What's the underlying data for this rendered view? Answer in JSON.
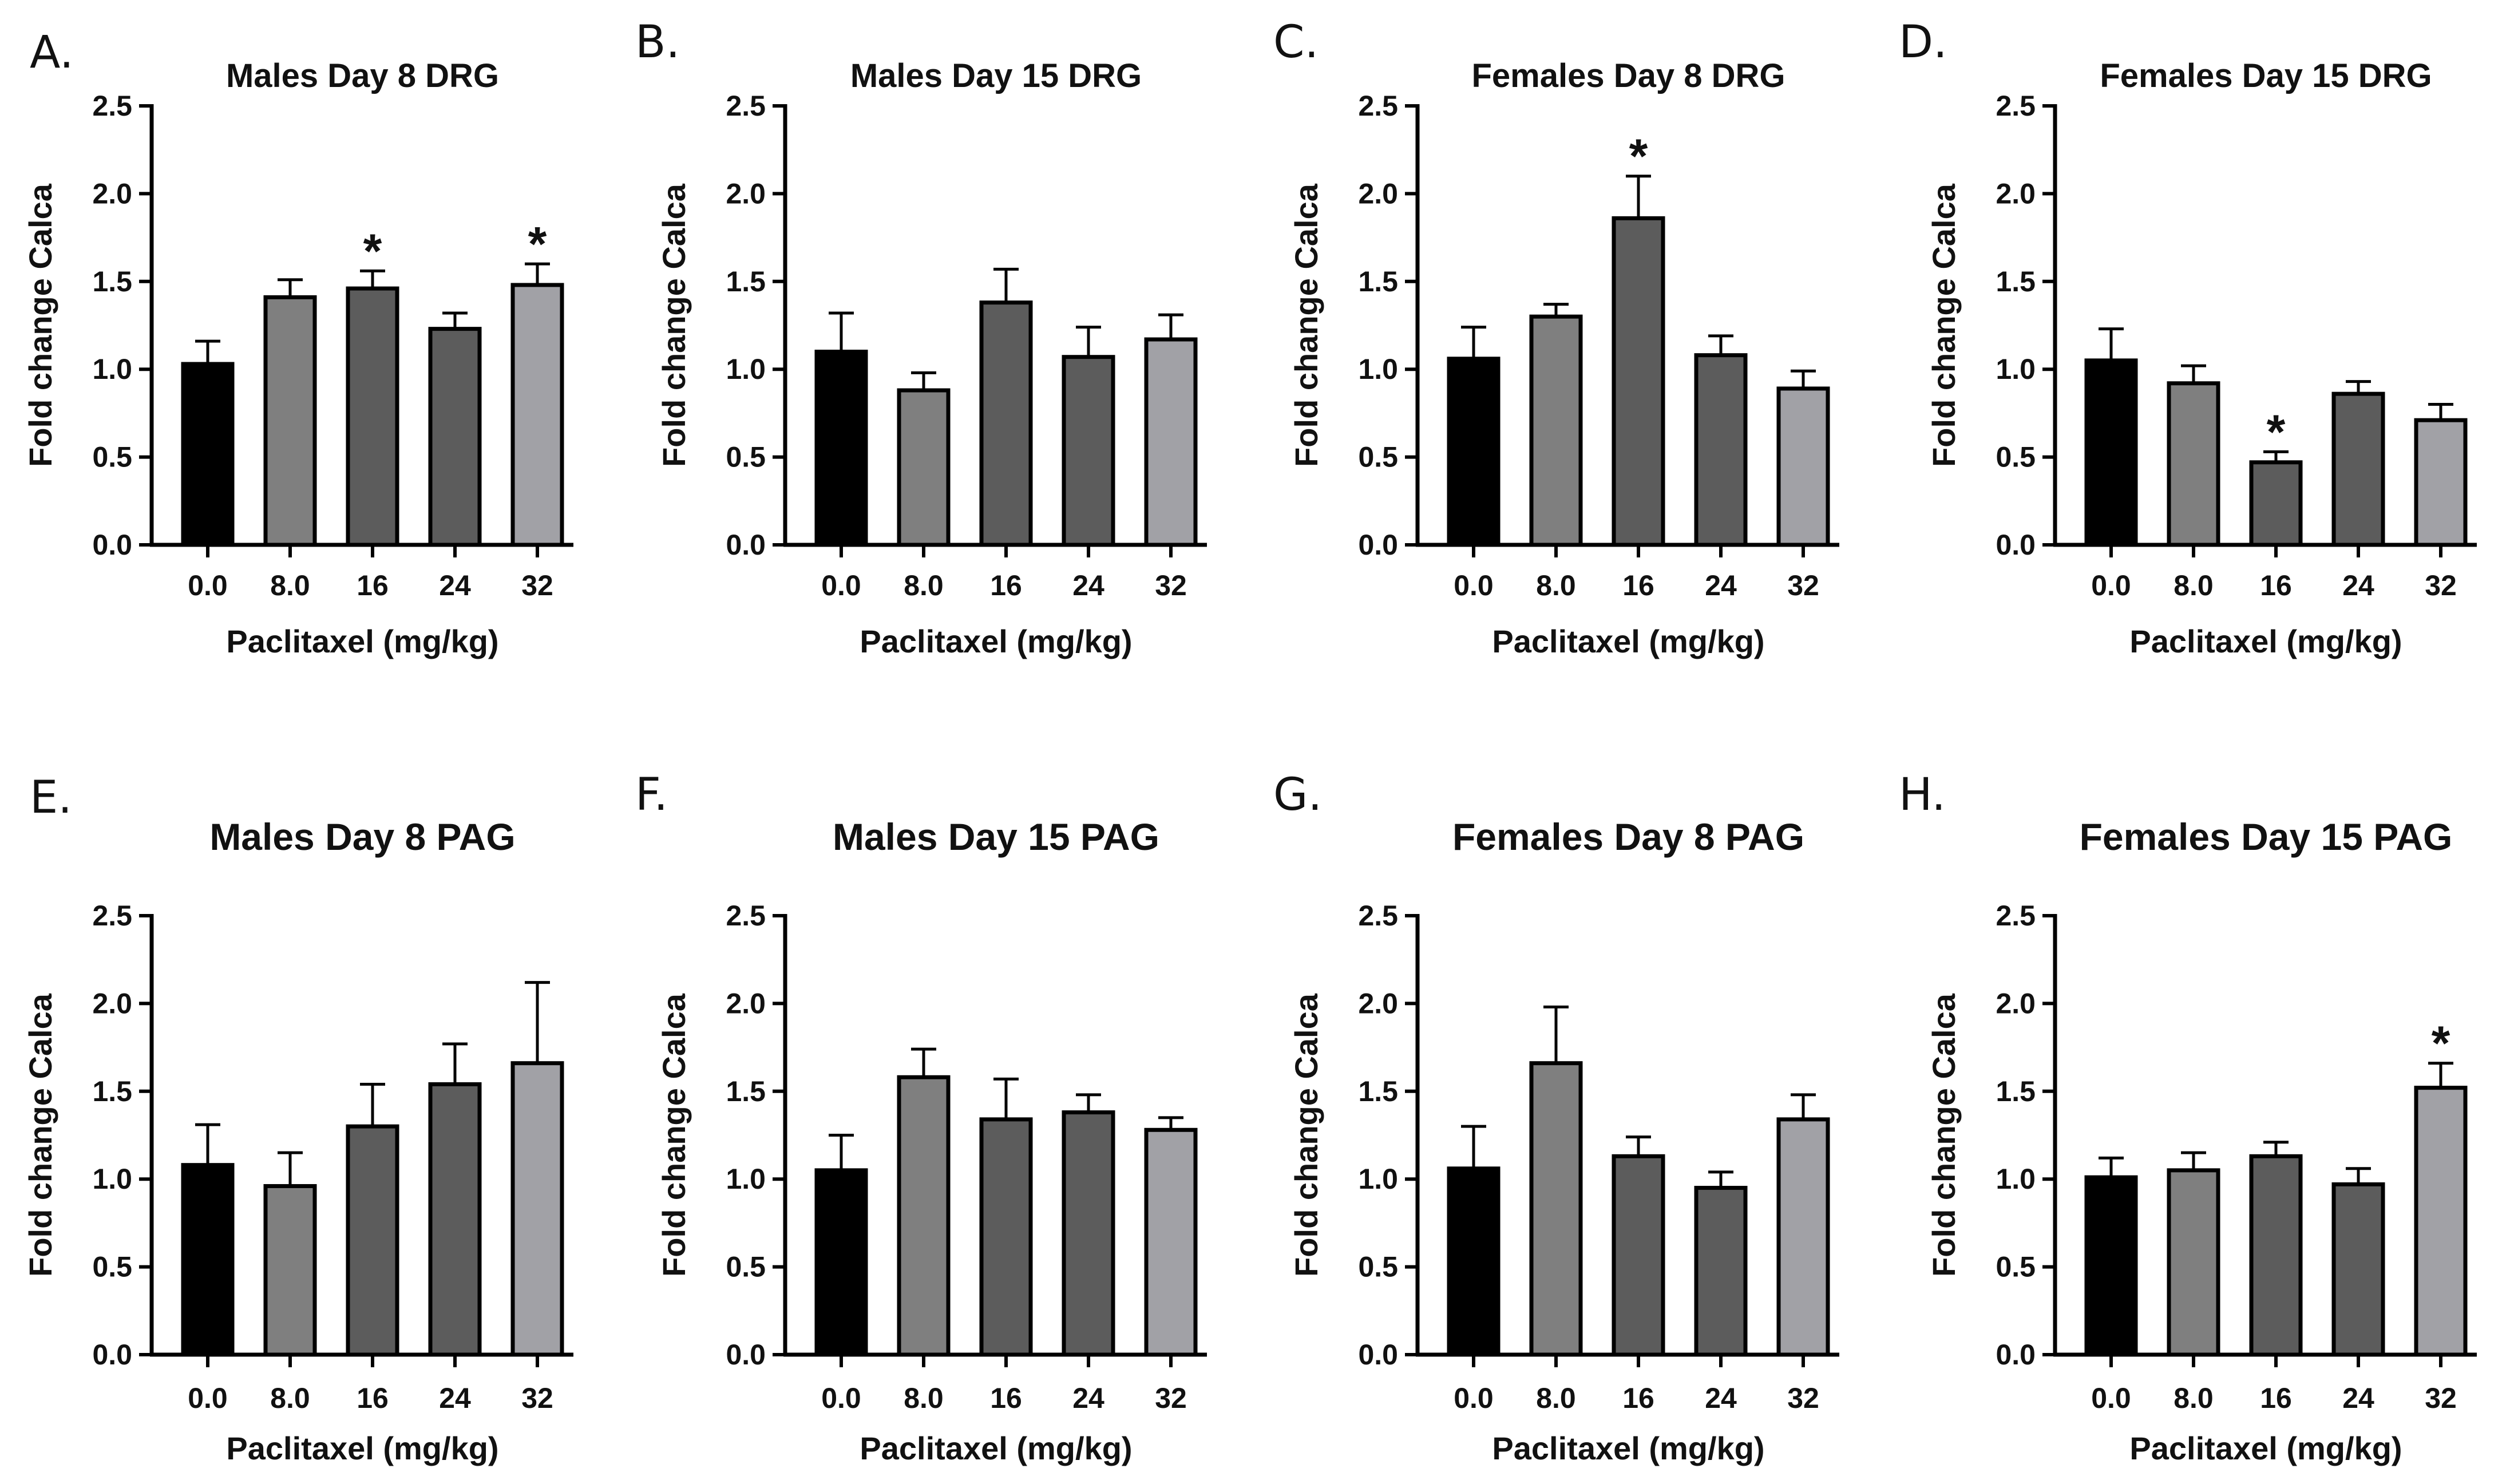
{
  "colors": {
    "bar_fills": [
      "#000000",
      "#7f7f7f",
      "#5c5c5c",
      "#5c5c5c",
      "#a1a1a6"
    ],
    "axis": "#000000"
  },
  "chart_data": [
    {
      "letter": "A.",
      "title": "Males Day 8 DRG",
      "type": "bar",
      "categories": [
        "0.0",
        "8.0",
        "16",
        "24",
        "32"
      ],
      "values": [
        1.03,
        1.41,
        1.46,
        1.23,
        1.48
      ],
      "errors": [
        0.13,
        0.1,
        0.1,
        0.09,
        0.12
      ],
      "significant": [
        false,
        false,
        true,
        false,
        true
      ],
      "xlabel": "Paclitaxel (mg/kg)",
      "ylabel": "Fold change Calca",
      "ylim": [
        0,
        2.5
      ],
      "yticks": [
        "0.0",
        "0.5",
        "1.0",
        "1.5",
        "2.0",
        "2.5"
      ],
      "sig_marker": "*"
    },
    {
      "letter": "B.",
      "title": "Males Day 15 DRG",
      "type": "bar",
      "categories": [
        "0.0",
        "8.0",
        "16",
        "24",
        "32"
      ],
      "values": [
        1.1,
        0.88,
        1.38,
        1.07,
        1.17
      ],
      "errors": [
        0.22,
        0.1,
        0.19,
        0.17,
        0.14
      ],
      "significant": [
        false,
        false,
        false,
        false,
        false
      ],
      "xlabel": "Paclitaxel (mg/kg)",
      "ylabel": "Fold change Calca",
      "ylim": [
        0,
        2.5
      ],
      "yticks": [
        "0.0",
        "0.5",
        "1.0",
        "1.5",
        "2.0",
        "2.5"
      ],
      "sig_marker": "*"
    },
    {
      "letter": "C.",
      "title": "Females Day 8 DRG",
      "type": "bar",
      "categories": [
        "0.0",
        "8.0",
        "16",
        "24",
        "32"
      ],
      "values": [
        1.06,
        1.3,
        1.86,
        1.08,
        0.89
      ],
      "errors": [
        0.18,
        0.07,
        0.24,
        0.11,
        0.1
      ],
      "significant": [
        false,
        false,
        true,
        false,
        false
      ],
      "xlabel": "Paclitaxel (mg/kg)",
      "ylabel": "Fold change Calca",
      "ylim": [
        0,
        2.5
      ],
      "yticks": [
        "0.0",
        "0.5",
        "1.0",
        "1.5",
        "2.0",
        "2.5"
      ],
      "sig_marker": "*"
    },
    {
      "letter": "D.",
      "title": "Females Day 15 DRG",
      "type": "bar",
      "categories": [
        "0.0",
        "8.0",
        "16",
        "24",
        "32"
      ],
      "values": [
        1.05,
        0.92,
        0.47,
        0.86,
        0.71
      ],
      "errors": [
        0.18,
        0.1,
        0.06,
        0.07,
        0.09
      ],
      "significant": [
        false,
        false,
        true,
        false,
        false
      ],
      "xlabel": "Paclitaxel (mg/kg)",
      "ylabel": "Fold change Calca",
      "ylim": [
        0,
        2.5
      ],
      "yticks": [
        "0.0",
        "0.5",
        "1.0",
        "1.5",
        "2.0",
        "2.5"
      ],
      "sig_marker": "*"
    },
    {
      "letter": "E.",
      "title": "Males Day 8 PAG",
      "type": "bar",
      "categories": [
        "0.0",
        "8.0",
        "16",
        "24",
        "32"
      ],
      "values": [
        1.08,
        0.96,
        1.3,
        1.54,
        1.66
      ],
      "errors": [
        0.23,
        0.19,
        0.24,
        0.23,
        0.46
      ],
      "significant": [
        false,
        false,
        false,
        false,
        false
      ],
      "xlabel": "Paclitaxel (mg/kg)",
      "ylabel": "Fold change Calca",
      "ylim": [
        0,
        2.5
      ],
      "yticks": [
        "0.0",
        "0.5",
        "1.0",
        "1.5",
        "2.0",
        "2.5"
      ],
      "sig_marker": "*"
    },
    {
      "letter": "F.",
      "title": "Males Day 15 PAG",
      "type": "bar",
      "categories": [
        "0.0",
        "8.0",
        "16",
        "24",
        "32"
      ],
      "values": [
        1.05,
        1.58,
        1.34,
        1.38,
        1.28
      ],
      "errors": [
        0.2,
        0.16,
        0.23,
        0.1,
        0.07
      ],
      "significant": [
        false,
        false,
        false,
        false,
        false
      ],
      "xlabel": "Paclitaxel (mg/kg)",
      "ylabel": "Fold change Calca",
      "ylim": [
        0,
        2.5
      ],
      "yticks": [
        "0.0",
        "0.5",
        "1.0",
        "1.5",
        "2.0",
        "2.5"
      ],
      "sig_marker": "*"
    },
    {
      "letter": "G.",
      "title": "Females Day 8 PAG",
      "type": "bar",
      "categories": [
        "0.0",
        "8.0",
        "16",
        "24",
        "32"
      ],
      "values": [
        1.06,
        1.66,
        1.13,
        0.95,
        1.34
      ],
      "errors": [
        0.24,
        0.32,
        0.11,
        0.09,
        0.14
      ],
      "significant": [
        false,
        false,
        false,
        false,
        false
      ],
      "xlabel": "Paclitaxel (mg/kg)",
      "ylabel": "Fold change Calca",
      "ylim": [
        0,
        2.5
      ],
      "yticks": [
        "0.0",
        "0.5",
        "1.0",
        "1.5",
        "2.0",
        "2.5"
      ],
      "sig_marker": "*"
    },
    {
      "letter": "H.",
      "title": "Females Day 15 PAG",
      "type": "bar",
      "categories": [
        "0.0",
        "8.0",
        "16",
        "24",
        "32"
      ],
      "values": [
        1.01,
        1.05,
        1.13,
        0.97,
        1.52
      ],
      "errors": [
        0.11,
        0.1,
        0.08,
        0.09,
        0.14
      ],
      "significant": [
        false,
        false,
        false,
        false,
        true
      ],
      "xlabel": "Paclitaxel (mg/kg)",
      "ylabel": "Fold change Calca",
      "ylim": [
        0,
        2.5
      ],
      "yticks": [
        "0.0",
        "0.5",
        "1.0",
        "1.5",
        "2.0",
        "2.5"
      ],
      "sig_marker": "*"
    }
  ]
}
